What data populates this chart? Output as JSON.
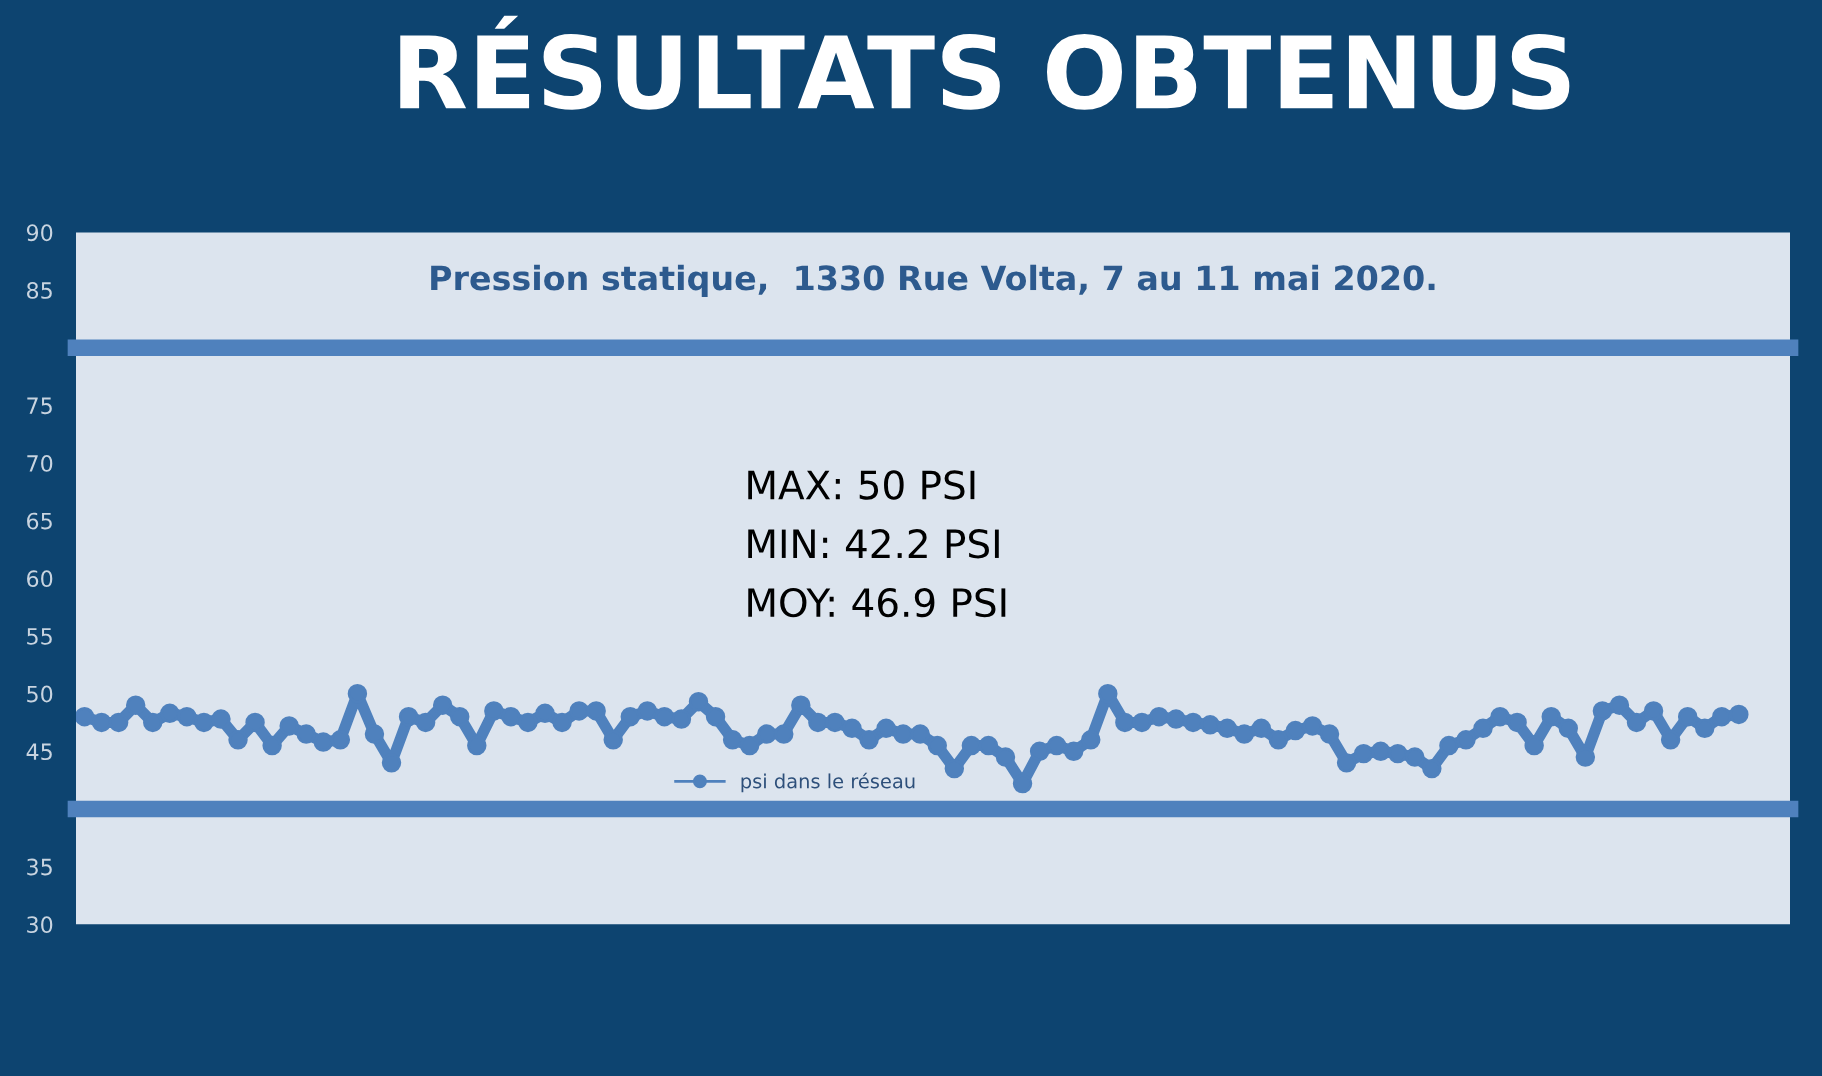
{
  "chart_data": {
    "type": "line",
    "title": "RÉSULTATS OBTENUS",
    "subtitle": "Pression statique,  1330 Rue Volta, 7 au 11 mai 2020.",
    "annotations": [
      "MAX: 50 PSI",
      "MIN: 42.2 PSI",
      "MOY: 46.9 PSI"
    ],
    "categories": [
      null,
      null,
      null,
      null,
      null,
      null,
      null,
      null,
      null,
      null,
      null,
      null,
      null,
      null,
      null,
      null,
      null,
      null,
      null,
      null,
      null,
      null,
      null,
      null,
      null,
      null,
      null,
      null,
      null,
      null,
      null,
      null,
      null,
      null,
      null,
      null,
      null,
      null,
      null,
      null,
      null,
      null,
      null,
      null,
      null,
      null,
      null,
      null,
      null,
      null,
      null,
      null,
      null,
      null,
      null,
      null,
      null,
      null,
      null,
      null,
      null,
      null,
      null,
      null,
      null,
      null,
      null,
      null,
      null,
      null,
      null,
      null,
      null,
      null,
      null,
      null,
      null,
      null,
      null,
      null,
      null,
      null,
      null,
      null,
      null,
      null,
      null,
      null,
      null,
      null,
      null,
      null,
      null,
      null,
      null,
      null,
      null,
      null
    ],
    "series": [
      {
        "name": "psi dans le réseau",
        "color": "#4f81bd",
        "values": [
          48,
          47.5,
          47.5,
          49,
          47.5,
          48.3,
          48,
          47.5,
          47.8,
          46,
          47.5,
          45.5,
          47.2,
          46.5,
          45.8,
          46,
          50,
          46.5,
          44,
          48,
          47.5,
          49,
          48,
          45.5,
          48.5,
          48,
          47.5,
          48.3,
          47.5,
          48.5,
          48.5,
          46,
          48,
          48.5,
          48,
          47.8,
          49.3,
          48,
          46,
          45.5,
          46.5,
          46.5,
          49,
          47.5,
          47.5,
          47,
          46,
          47,
          46.5,
          46.5,
          45.5,
          43.5,
          45.5,
          45.5,
          44.5,
          42.2,
          45,
          45.5,
          45,
          46,
          50,
          47.5,
          47.5,
          48,
          47.8,
          47.5,
          47.3,
          47,
          46.5,
          47,
          46,
          46.8,
          47.2,
          46.5,
          44,
          44.8,
          45,
          44.8,
          44.5,
          43.5,
          45.5,
          46,
          47,
          48,
          47.5,
          45.5,
          48,
          47,
          44.5,
          48.5,
          49,
          47.5,
          48.5,
          46,
          48,
          47,
          48,
          48.2
        ]
      }
    ],
    "ylim": [
      30,
      90
    ],
    "yticks": [
      30,
      35,
      45,
      50,
      55,
      60,
      65,
      70,
      75,
      85,
      90
    ],
    "ref_lines": [
      {
        "axis": "y",
        "value": 80,
        "label": null,
        "color": "#4f81bd"
      },
      {
        "axis": "y",
        "value": 40,
        "label": null,
        "color": "#4f81bd"
      }
    ],
    "legend": "bottom",
    "marker": "circle",
    "line_style": "solid",
    "grid": false
  }
}
